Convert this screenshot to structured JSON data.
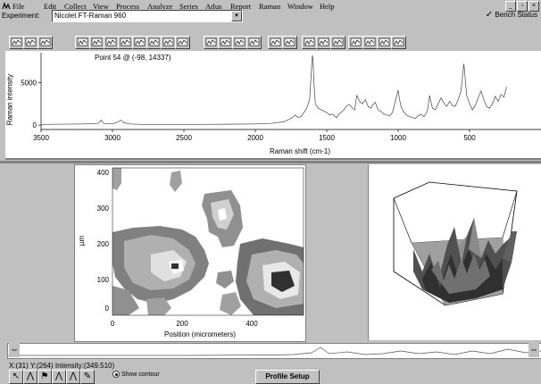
{
  "menu": {
    "items": [
      {
        "label": "File",
        "x": 14
      },
      {
        "label": "Edit",
        "x": 49
      },
      {
        "label": "Collect",
        "x": 72
      },
      {
        "label": "View",
        "x": 104
      },
      {
        "label": "Process",
        "x": 130
      },
      {
        "label": "Analyze",
        "x": 165
      },
      {
        "label": "Series",
        "x": 201
      },
      {
        "label": "Atlus",
        "x": 230
      },
      {
        "label": "Report",
        "x": 258
      },
      {
        "label": "Raman",
        "x": 290
      },
      {
        "label": "Window",
        "x": 322
      },
      {
        "label": "Help",
        "x": 358
      }
    ],
    "window_controls": [
      "_",
      "▫",
      "×"
    ]
  },
  "experiment": {
    "label": "Experiment:",
    "value": "Nicolet FT-Raman 960",
    "bench_status": "Bench Status"
  },
  "spectrum": {
    "annotation": "Point 54 @ (-98, 14337)",
    "ylabel": "Raman intensity",
    "xlabel": "Raman shift (cm-1)",
    "xticks": [
      "3500",
      "3000",
      "2500",
      "2000",
      "1500",
      "1000",
      "500"
    ],
    "yticks": [
      "5000",
      "0"
    ]
  },
  "map": {
    "ylabel": "µm",
    "xlabel": "Position (micrometers)",
    "xticks": [
      "0",
      "200",
      "400"
    ],
    "yticks": [
      "400",
      "300",
      "200",
      "100",
      "0"
    ]
  },
  "status": {
    "text": "X:(31) Y:(264) Intensity:(349.510)",
    "show_contour": "Show contour",
    "profile_setup": "Profile Setup"
  },
  "chart_data": {
    "type": "line",
    "title": "",
    "xlabel": "Raman shift (cm-1)",
    "ylabel": "Raman intensity",
    "xlim": [
      3500,
      0
    ],
    "ylim": [
      -500,
      8500
    ],
    "x": [
      3500,
      3200,
      3100,
      3080,
      3060,
      3000,
      2960,
      2940,
      2920,
      2880,
      2800,
      2600,
      2400,
      2200,
      2000,
      1900,
      1800,
      1750,
      1720,
      1700,
      1680,
      1660,
      1640,
      1620,
      1605,
      1600,
      1595,
      1590,
      1580,
      1560,
      1540,
      1500,
      1480,
      1460,
      1440,
      1430,
      1420,
      1400,
      1380,
      1360,
      1340,
      1320,
      1305,
      1290,
      1270,
      1250,
      1230,
      1210,
      1190,
      1180,
      1160,
      1150,
      1140,
      1120,
      1100,
      1080,
      1060,
      1040,
      1020,
      1005,
      1000,
      990,
      980,
      960,
      940,
      920,
      900,
      880,
      860,
      840,
      820,
      800,
      790,
      780,
      760,
      740,
      720,
      700,
      680,
      660,
      640,
      620,
      600,
      580,
      560,
      540,
      520,
      500,
      480,
      460,
      440,
      420,
      400,
      380,
      360,
      340,
      320,
      300,
      280,
      260,
      240
    ],
    "y": [
      100,
      150,
      200,
      600,
      200,
      150,
      400,
      600,
      300,
      150,
      100,
      100,
      100,
      120,
      150,
      200,
      400,
      800,
      1200,
      900,
      1000,
      1500,
      2000,
      3000,
      7000,
      8200,
      7500,
      5000,
      2500,
      2000,
      1800,
      1500,
      1200,
      1300,
      1000,
      900,
      1200,
      1500,
      1800,
      2300,
      2400,
      2000,
      1800,
      3500,
      2800,
      2500,
      3000,
      2200,
      2000,
      2300,
      2700,
      2200,
      1800,
      1600,
      1300,
      1200,
      1100,
      1500,
      2800,
      3800,
      4100,
      3000,
      2200,
      1500,
      1200,
      1000,
      900,
      800,
      1100,
      1300,
      1000,
      1500,
      2200,
      3500,
      2000,
      1800,
      2500,
      3200,
      2600,
      2200,
      2800,
      2300,
      2200,
      3000,
      4000,
      7200,
      3500,
      2500,
      1800,
      2300,
      3200,
      4000,
      3000,
      2200,
      2000,
      2500,
      3400,
      2800,
      3600,
      3300,
      4500
    ]
  }
}
